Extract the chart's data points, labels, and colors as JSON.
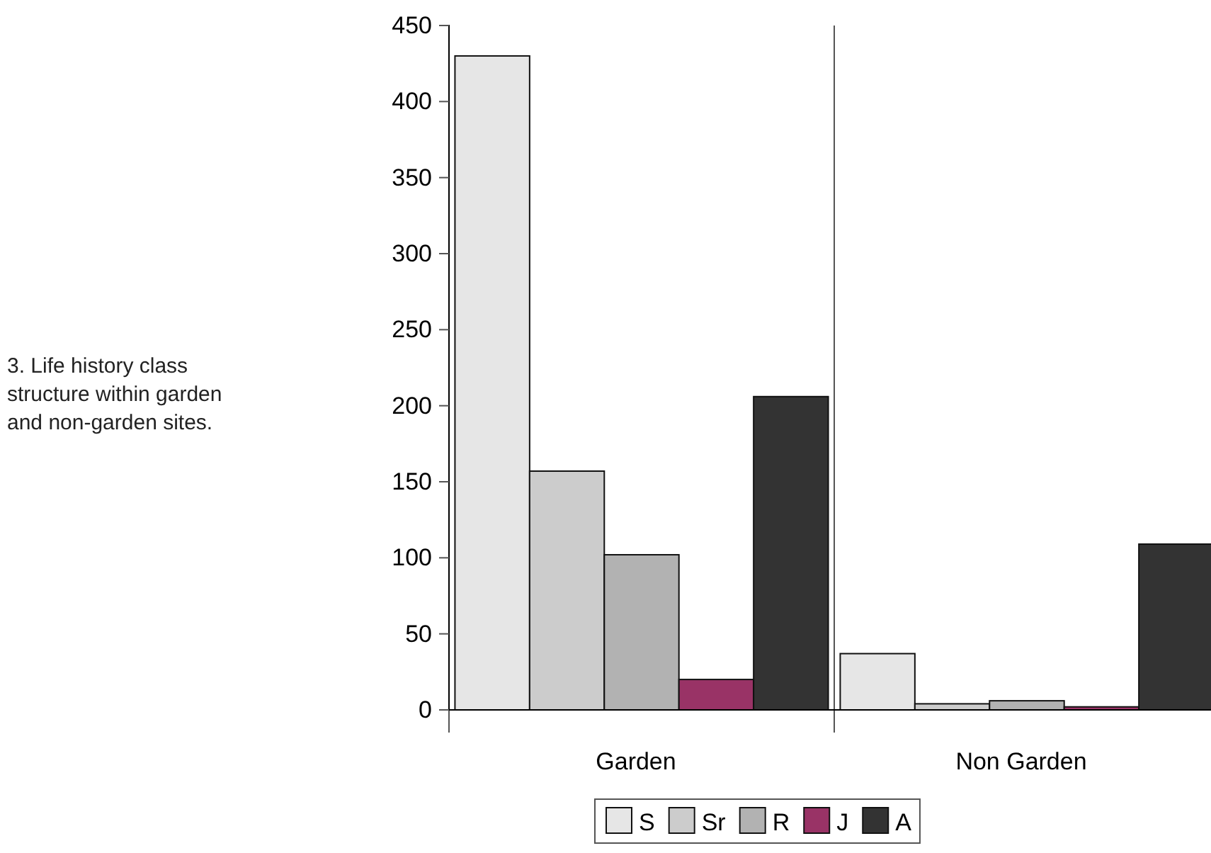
{
  "chart_data": {
    "type": "bar",
    "categories": [
      "Garden",
      "Non Garden"
    ],
    "series": [
      {
        "name": "S",
        "color": "#e6e6e6",
        "values": [
          430,
          37
        ]
      },
      {
        "name": "Sr",
        "color": "#cccccc",
        "values": [
          157,
          4
        ]
      },
      {
        "name": "R",
        "color": "#b2b2b2",
        "values": [
          102,
          6
        ]
      },
      {
        "name": "J",
        "color": "#993366",
        "values": [
          20,
          2
        ]
      },
      {
        "name": "A",
        "color": "#333333",
        "values": [
          206,
          109
        ]
      }
    ],
    "ylim": [
      0,
      450
    ],
    "yticks": [
      0,
      50,
      100,
      150,
      200,
      250,
      300,
      350,
      400,
      450
    ],
    "grid": false,
    "legend": "bottom",
    "annotations": [
      "3. Life history class structure within garden and non-garden sites."
    ]
  }
}
